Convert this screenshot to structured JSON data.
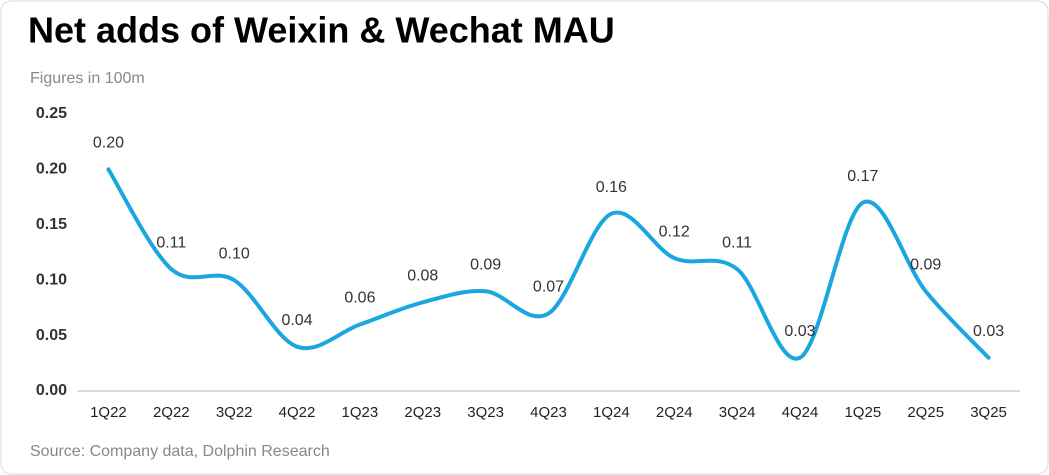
{
  "chart_data": {
    "type": "line",
    "title": "Net adds of Weixin & Wechat MAU",
    "subtitle": "Figures in 100m",
    "source": "Source: Company data, Dolphin Research",
    "categories": [
      "1Q22",
      "2Q22",
      "3Q22",
      "4Q22",
      "1Q23",
      "2Q23",
      "3Q23",
      "4Q23",
      "1Q24",
      "2Q24",
      "3Q24",
      "4Q24",
      "1Q25",
      "2Q25",
      "3Q25"
    ],
    "values": [
      0.2,
      0.11,
      0.1,
      0.04,
      0.06,
      0.08,
      0.09,
      0.07,
      0.16,
      0.12,
      0.11,
      0.03,
      0.17,
      0.09,
      0.03
    ],
    "value_labels": [
      "0.20",
      "0.11",
      "0.10",
      "0.04",
      "0.06",
      "0.08",
      "0.09",
      "0.07",
      "0.16",
      "0.12",
      "0.11",
      "0.03",
      "0.17",
      "0.09",
      "0.03"
    ],
    "color": "#1aa7e0",
    "ylim": [
      0,
      0.25
    ],
    "yticks": [
      {
        "value": 0,
        "label": "0.00"
      },
      0.05,
      {
        "value": 0.1,
        "label": "0.10"
      },
      0.15,
      {
        "value": 0.2,
        "label": "0.20"
      },
      0.25
    ]
  }
}
